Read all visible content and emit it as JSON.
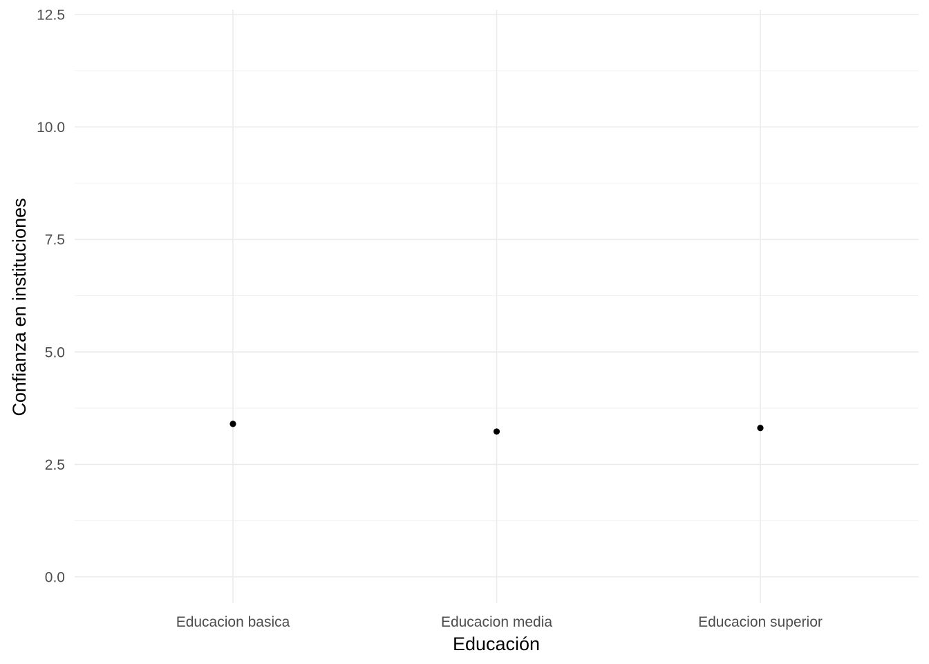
{
  "chart_data": {
    "type": "scatter",
    "title": "",
    "xlabel": "Educación",
    "ylabel": "Confianza en instituciones",
    "categories": [
      "Educacion basica",
      "Educacion media",
      "Educacion superior"
    ],
    "values": [
      3.4,
      3.23,
      3.31
    ],
    "ylim": [
      0,
      12.5
    ],
    "yticks": [
      "0.0",
      "2.5",
      "5.0",
      "7.5",
      "10.0",
      "12.5"
    ],
    "ytick_values": [
      0,
      2.5,
      5,
      7.5,
      10,
      12.5
    ],
    "grid": true,
    "point_color": "#000000",
    "grid_color": "#ebebeb"
  }
}
